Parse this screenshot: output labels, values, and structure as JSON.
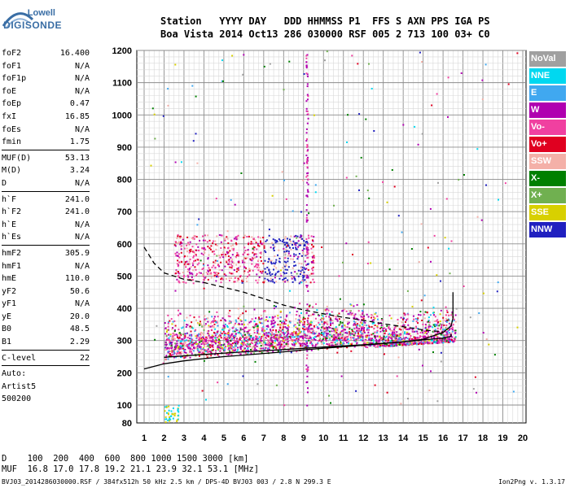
{
  "logo": {
    "line1": "Lowell",
    "line2": "DIGISONDE"
  },
  "header": {
    "row1": "Station   YYYY DAY   DDD HHMMSS P1  FFS S AXN PPS IGA PS",
    "row2": "Boa Vista 2014 Oct13 286 030000 RSF 005 2 713 100 03+ C0"
  },
  "params_group1": [
    {
      "k": "foF2",
      "v": "16.400"
    },
    {
      "k": "foF1",
      "v": "N/A"
    },
    {
      "k": "foF1p",
      "v": "N/A"
    },
    {
      "k": "foE",
      "v": "N/A"
    },
    {
      "k": "foEp",
      "v": "0.47"
    },
    {
      "k": "fxI",
      "v": "16.85"
    },
    {
      "k": "foEs",
      "v": "N/A"
    },
    {
      "k": "fmin",
      "v": "1.75"
    }
  ],
  "params_group2": [
    {
      "k": "MUF(D)",
      "v": "53.13"
    },
    {
      "k": "M(D)",
      "v": "3.24"
    },
    {
      "k": "D",
      "v": "N/A"
    }
  ],
  "params_group3": [
    {
      "k": "h`F",
      "v": "241.0"
    },
    {
      "k": "h`F2",
      "v": "241.0"
    },
    {
      "k": "h`E",
      "v": "N/A"
    },
    {
      "k": "h`Es",
      "v": "N/A"
    }
  ],
  "params_group4": [
    {
      "k": "hmF2",
      "v": "305.9"
    },
    {
      "k": "hmF1",
      "v": "N/A"
    },
    {
      "k": "hmE",
      "v": "110.0"
    },
    {
      "k": "yF2",
      "v": "50.6"
    },
    {
      "k": "yF1",
      "v": "N/A"
    },
    {
      "k": "yE",
      "v": "20.0"
    },
    {
      "k": "B0",
      "v": "48.5"
    },
    {
      "k": "B1",
      "v": "2.29"
    }
  ],
  "clevel": {
    "k": "C-level",
    "v": "22"
  },
  "auto": {
    "l1": "Auto:",
    "l2": "Artist5",
    "l3": "500200"
  },
  "legend": [
    {
      "label": "NoVal",
      "color": "#a0a0a0"
    },
    {
      "label": "NNE",
      "color": "#00d8f0"
    },
    {
      "label": "E",
      "color": "#40a8f0"
    },
    {
      "label": "W",
      "color": "#b000b0"
    },
    {
      "label": "Vo-",
      "color": "#f040a0"
    },
    {
      "label": "Vo+",
      "color": "#e00020"
    },
    {
      "label": "SSW",
      "color": "#f4b0a8"
    },
    {
      "label": "X-",
      "color": "#008000"
    },
    {
      "label": "X+",
      "color": "#70b050"
    },
    {
      "label": "SSE",
      "color": "#d8d000"
    },
    {
      "label": "NNW",
      "color": "#2020c0"
    }
  ],
  "muf_table": {
    "row1": "D    100  200  400  600  800 1000 1500 3000 [km]",
    "row2": "MUF  16.8 17.0 17.8 19.2 21.1 23.9 32.1 53.1 [MHz]"
  },
  "footer": "BVJ03_2014286030000.RSF / 384fx512h 50 kHz 2.5 km / DPS-4D BVJ03 003 / 2.8 N 299.3 E",
  "footer_right": "Ion2Png v. 1.3.17",
  "chart_data": {
    "type": "scatter",
    "title": "",
    "xlabel": "",
    "ylabel": "",
    "xlim": [
      1,
      20
    ],
    "ylim": [
      80,
      1200
    ],
    "xticks": [
      1,
      2,
      3,
      4,
      5,
      6,
      7,
      8,
      9,
      10,
      11,
      12,
      13,
      14,
      15,
      16,
      17,
      18,
      19,
      20
    ],
    "yticks": [
      80,
      100,
      200,
      300,
      400,
      500,
      600,
      700,
      800,
      900,
      1000,
      1100,
      1200
    ],
    "grid": true,
    "legend_position": "right",
    "lines": [
      {
        "name": "profile_solid",
        "color": "#000000",
        "style": "solid",
        "points": [
          [
            1,
            212
          ],
          [
            2,
            228
          ],
          [
            3,
            237
          ],
          [
            4,
            244
          ],
          [
            5,
            250
          ],
          [
            6,
            255
          ],
          [
            7,
            260
          ],
          [
            8,
            265
          ],
          [
            9,
            271
          ],
          [
            10,
            276
          ],
          [
            11,
            281
          ],
          [
            12,
            286
          ],
          [
            13,
            291
          ],
          [
            14,
            296
          ],
          [
            15,
            302
          ],
          [
            16,
            308
          ],
          [
            16.4,
            313
          ],
          [
            16.4,
            320
          ]
        ]
      },
      {
        "name": "trace_solid",
        "color": "#000000",
        "style": "solid",
        "points": [
          [
            2,
            248
          ],
          [
            4,
            257
          ],
          [
            6,
            265
          ],
          [
            8,
            272
          ],
          [
            10,
            280
          ],
          [
            12,
            287
          ],
          [
            14,
            296
          ],
          [
            15,
            304
          ],
          [
            16,
            325
          ],
          [
            16.4,
            345
          ],
          [
            16.5,
            370
          ],
          [
            16.5,
            450
          ]
        ]
      },
      {
        "name": "profile_dashed",
        "color": "#000000",
        "style": "dashed",
        "points": [
          [
            1,
            590
          ],
          [
            1.5,
            540
          ],
          [
            2,
            510
          ],
          [
            3,
            490
          ],
          [
            4,
            480
          ],
          [
            5,
            465
          ],
          [
            6,
            450
          ],
          [
            7,
            430
          ],
          [
            8,
            410
          ],
          [
            9,
            395
          ],
          [
            10,
            383
          ],
          [
            11,
            372
          ],
          [
            12,
            363
          ],
          [
            13,
            352
          ],
          [
            14,
            343
          ],
          [
            15,
            333
          ],
          [
            16,
            327
          ]
        ]
      }
    ],
    "echo_regions": [
      {
        "name": "F-trace",
        "x_range": [
          2,
          17
        ],
        "h_range": [
          240,
          390
        ]
      },
      {
        "name": "spread-F",
        "x_range": [
          2.5,
          9.5
        ],
        "h_range": [
          480,
          640
        ]
      },
      {
        "name": "low-h",
        "x_range": [
          2,
          2.6
        ],
        "h_range": [
          80,
          110
        ]
      }
    ]
  }
}
